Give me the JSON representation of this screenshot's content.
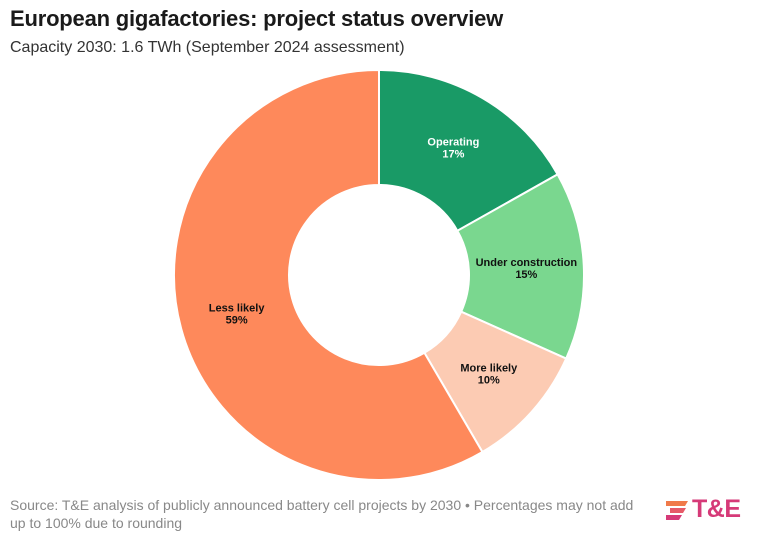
{
  "chart_data": {
    "type": "pie",
    "title": "European gigafactories: project status overview",
    "subtitle": "Capacity 2030: 1.6 TWh (September 2024 assessment)",
    "categories": [
      "Operating",
      "Under construction",
      "More likely",
      "Less likely"
    ],
    "values": [
      17,
      15,
      10,
      59
    ],
    "value_labels": [
      "17%",
      "15%",
      "10%",
      "59%"
    ],
    "colors": [
      "#199a66",
      "#7ad78f",
      "#fccbb3",
      "#fe895b"
    ],
    "label_colors": [
      "#ffffff",
      "#111111",
      "#111111",
      "#111111"
    ],
    "donut": true,
    "legend": "none"
  },
  "footer": {
    "source": "Source: T&E analysis of publicly announced battery cell projects by 2030 • Percentages may not add up to 100% due to rounding"
  },
  "logo": {
    "text": "T&E",
    "color": "#d63a78"
  }
}
